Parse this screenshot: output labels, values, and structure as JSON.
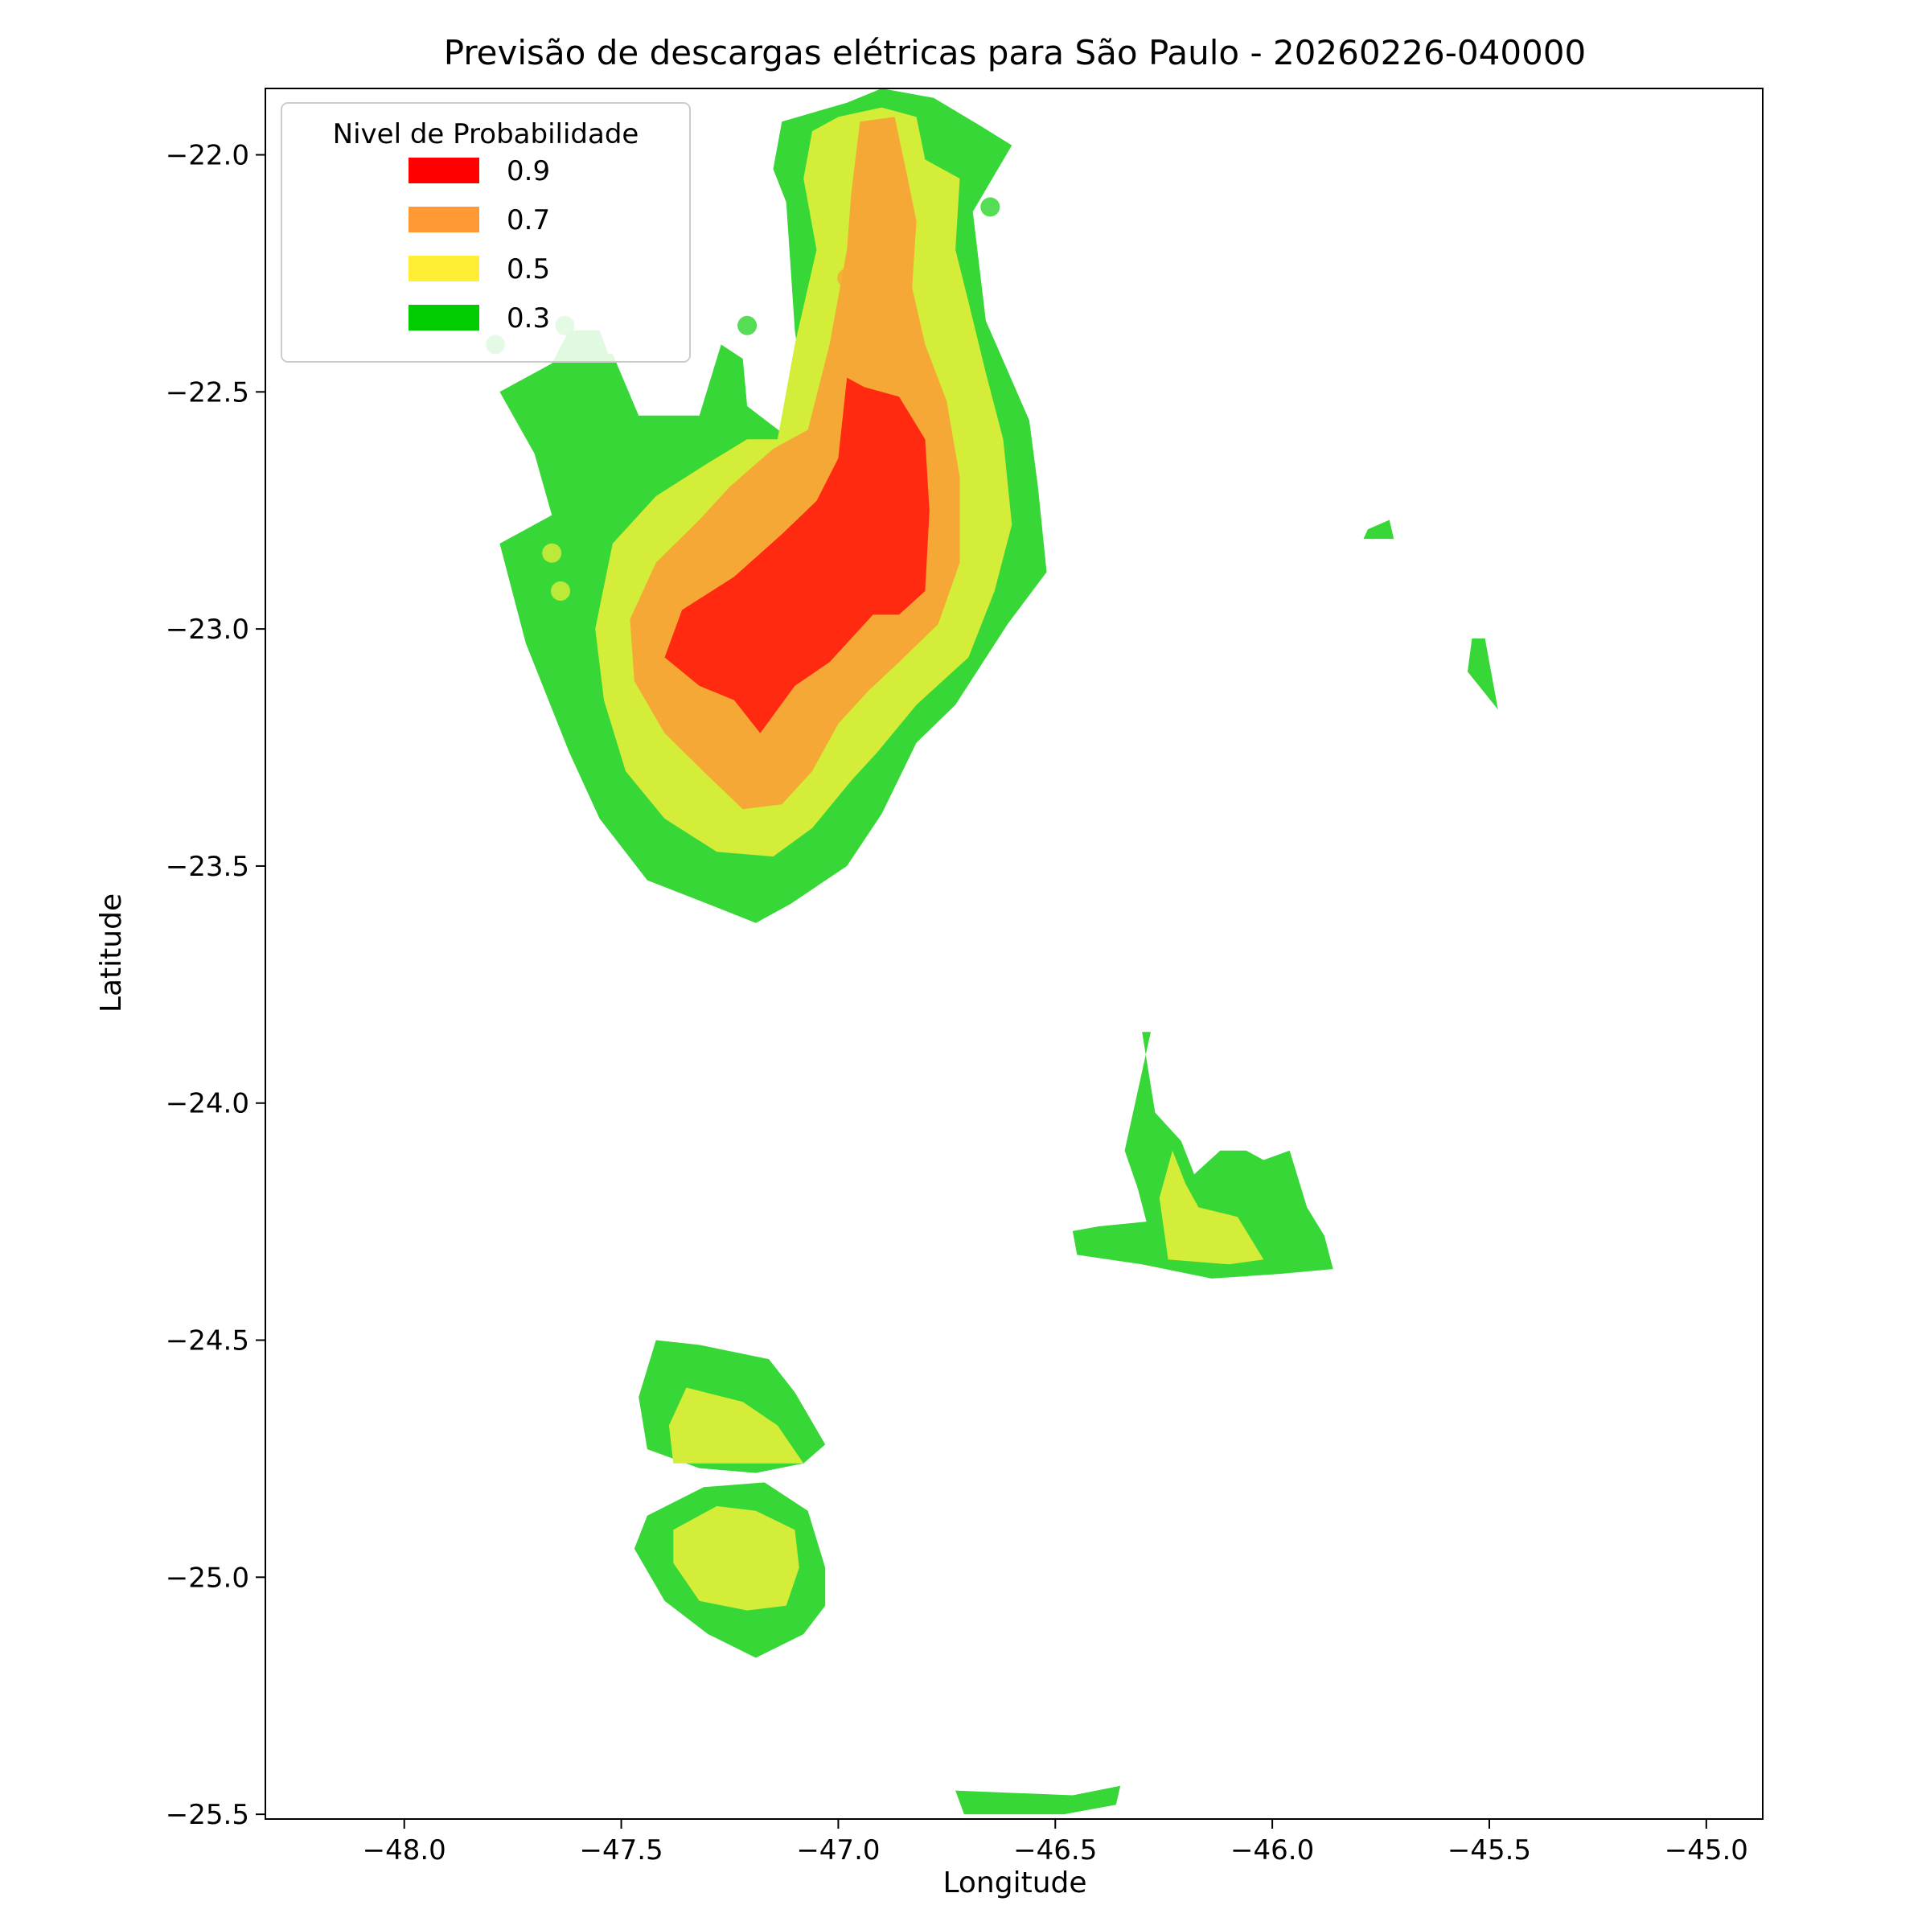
{
  "chart_data": {
    "type": "heatmap",
    "title": "Previsão de descargas elétricas para São Paulo - 20260226-040000",
    "xlabel": "Longitude",
    "ylabel": "Latitude",
    "xlim": [
      -48.32,
      -44.87
    ],
    "ylim": [
      -25.51,
      -21.86
    ],
    "xticks": [
      -48.0,
      -47.5,
      -47.0,
      -46.5,
      -46.0,
      -45.5,
      -45.0
    ],
    "xtick_labels": [
      "−48.0",
      "−47.5",
      "−47.0",
      "−46.5",
      "−46.0",
      "−45.5",
      "−45.0"
    ],
    "yticks": [
      -22.0,
      -22.5,
      -23.0,
      -23.5,
      -24.0,
      -24.5,
      -25.0,
      -25.5
    ],
    "ytick_labels": [
      "−22.0",
      "−22.5",
      "−23.0",
      "−23.5",
      "−24.0",
      "−24.5",
      "−25.0",
      "−25.5"
    ],
    "grid": false,
    "legend": {
      "title": "Nivel de Probabilidade",
      "placement": "upper-left",
      "entries": [
        {
          "label": "0.9",
          "color": "#ff0000"
        },
        {
          "label": "0.7",
          "color": "#ff9933"
        },
        {
          "label": "0.5",
          "color": "#ffee33"
        },
        {
          "label": "0.3",
          "color": "#00cc00"
        }
      ]
    },
    "fill_colors": {
      "0.3": "#37d737",
      "0.5": "#d4ed38",
      "0.7": "#f6a836",
      "0.9": "#ff2a10"
    },
    "regions": [
      {
        "name": "northern-cell",
        "level": "0.3",
        "polygon": [
          [
            -47.21,
            -22.53
          ],
          [
            -47.22,
            -22.43
          ],
          [
            -47.27,
            -22.4
          ],
          [
            -47.32,
            -22.55
          ],
          [
            -47.46,
            -22.55
          ],
          [
            -47.52,
            -22.42
          ],
          [
            -47.62,
            -22.42
          ],
          [
            -47.78,
            -22.5
          ],
          [
            -47.7,
            -22.63
          ],
          [
            -47.66,
            -22.76
          ],
          [
            -47.78,
            -22.82
          ],
          [
            -47.72,
            -23.03
          ],
          [
            -47.62,
            -23.26
          ],
          [
            -47.55,
            -23.4
          ],
          [
            -47.44,
            -23.53
          ],
          [
            -47.3,
            -23.58
          ],
          [
            -47.19,
            -23.62
          ],
          [
            -47.11,
            -23.58
          ],
          [
            -46.98,
            -23.5
          ],
          [
            -46.9,
            -23.39
          ],
          [
            -46.82,
            -23.24
          ],
          [
            -46.73,
            -23.16
          ],
          [
            -46.61,
            -22.99
          ],
          [
            -46.52,
            -22.88
          ],
          [
            -46.54,
            -22.7
          ],
          [
            -46.56,
            -22.56
          ],
          [
            -46.66,
            -22.35
          ],
          [
            -46.69,
            -22.12
          ],
          [
            -46.6,
            -21.98
          ],
          [
            -46.67,
            -21.94
          ],
          [
            -46.78,
            -21.88
          ],
          [
            -46.9,
            -21.86
          ],
          [
            -46.98,
            -21.89
          ],
          [
            -47.13,
            -21.93
          ],
          [
            -47.15,
            -22.03
          ],
          [
            -47.12,
            -22.1
          ],
          [
            -47.1,
            -22.37
          ],
          [
            -47.08,
            -22.5
          ],
          [
            -47.11,
            -22.6
          ]
        ]
      },
      {
        "name": "northern-cell",
        "level": "0.5",
        "polygon": [
          [
            -47.06,
            -21.95
          ],
          [
            -47.0,
            -21.92
          ],
          [
            -46.9,
            -21.9
          ],
          [
            -46.82,
            -21.92
          ],
          [
            -46.8,
            -22.01
          ],
          [
            -46.72,
            -22.05
          ],
          [
            -46.73,
            -22.2
          ],
          [
            -46.7,
            -22.31
          ],
          [
            -46.66,
            -22.46
          ],
          [
            -46.62,
            -22.6
          ],
          [
            -46.6,
            -22.78
          ],
          [
            -46.64,
            -22.92
          ],
          [
            -46.7,
            -23.06
          ],
          [
            -46.82,
            -23.16
          ],
          [
            -46.91,
            -23.26
          ],
          [
            -46.97,
            -23.32
          ],
          [
            -47.06,
            -23.42
          ],
          [
            -47.15,
            -23.48
          ],
          [
            -47.28,
            -23.47
          ],
          [
            -47.4,
            -23.4
          ],
          [
            -47.49,
            -23.3
          ],
          [
            -47.54,
            -23.15
          ],
          [
            -47.56,
            -23.0
          ],
          [
            -47.52,
            -22.82
          ],
          [
            -47.42,
            -22.72
          ],
          [
            -47.3,
            -22.65
          ],
          [
            -47.21,
            -22.6
          ],
          [
            -47.14,
            -22.6
          ],
          [
            -47.1,
            -22.4
          ],
          [
            -47.05,
            -22.2
          ],
          [
            -47.08,
            -22.05
          ]
        ]
      },
      {
        "name": "northern-cell",
        "level": "0.7",
        "polygon": [
          [
            -46.95,
            -21.93
          ],
          [
            -46.87,
            -21.92
          ],
          [
            -46.84,
            -22.05
          ],
          [
            -46.82,
            -22.14
          ],
          [
            -46.83,
            -22.28
          ],
          [
            -46.8,
            -22.4
          ],
          [
            -46.75,
            -22.52
          ],
          [
            -46.72,
            -22.68
          ],
          [
            -46.72,
            -22.86
          ],
          [
            -46.77,
            -22.99
          ],
          [
            -46.86,
            -23.07
          ],
          [
            -46.93,
            -23.13
          ],
          [
            -47.0,
            -23.2
          ],
          [
            -47.06,
            -23.3
          ],
          [
            -47.13,
            -23.37
          ],
          [
            -47.22,
            -23.38
          ],
          [
            -47.3,
            -23.31
          ],
          [
            -47.4,
            -23.22
          ],
          [
            -47.47,
            -23.11
          ],
          [
            -47.48,
            -22.98
          ],
          [
            -47.42,
            -22.86
          ],
          [
            -47.32,
            -22.77
          ],
          [
            -47.25,
            -22.7
          ],
          [
            -47.15,
            -22.62
          ],
          [
            -47.07,
            -22.58
          ],
          [
            -47.02,
            -22.4
          ],
          [
            -46.98,
            -22.2
          ],
          [
            -46.97,
            -22.08
          ]
        ]
      },
      {
        "name": "northern-cell",
        "level": "0.9",
        "polygon": [
          [
            -46.98,
            -22.47
          ],
          [
            -46.94,
            -22.49
          ],
          [
            -46.86,
            -22.51
          ],
          [
            -46.8,
            -22.6
          ],
          [
            -46.79,
            -22.75
          ],
          [
            -46.8,
            -22.92
          ],
          [
            -46.86,
            -22.97
          ],
          [
            -46.92,
            -22.97
          ],
          [
            -46.97,
            -23.02
          ],
          [
            -47.02,
            -23.07
          ],
          [
            -47.1,
            -23.12
          ],
          [
            -47.18,
            -23.22
          ],
          [
            -47.24,
            -23.15
          ],
          [
            -47.32,
            -23.12
          ],
          [
            -47.4,
            -23.06
          ],
          [
            -47.36,
            -22.96
          ],
          [
            -47.24,
            -22.89
          ],
          [
            -47.13,
            -22.8
          ],
          [
            -47.05,
            -22.73
          ],
          [
            -47.0,
            -22.64
          ]
        ]
      },
      {
        "name": "eastern-cell",
        "level": "0.3",
        "polygon": [
          [
            -46.28,
            -23.85
          ],
          [
            -46.3,
            -23.85
          ],
          [
            -46.27,
            -24.02
          ],
          [
            -46.21,
            -24.08
          ],
          [
            -46.18,
            -24.15
          ],
          [
            -46.12,
            -24.1
          ],
          [
            -46.06,
            -24.1
          ],
          [
            -46.02,
            -24.12
          ],
          [
            -45.96,
            -24.1
          ],
          [
            -45.92,
            -24.22
          ],
          [
            -45.88,
            -24.28
          ],
          [
            -45.86,
            -24.35
          ],
          [
            -45.98,
            -24.36
          ],
          [
            -46.14,
            -24.37
          ],
          [
            -46.3,
            -24.34
          ],
          [
            -46.45,
            -24.32
          ],
          [
            -46.46,
            -24.27
          ],
          [
            -46.4,
            -24.26
          ],
          [
            -46.29,
            -24.25
          ],
          [
            -46.31,
            -24.18
          ],
          [
            -46.34,
            -24.1
          ]
        ]
      },
      {
        "name": "eastern-cell",
        "level": "0.5",
        "polygon": [
          [
            -46.23,
            -24.1
          ],
          [
            -46.2,
            -24.17
          ],
          [
            -46.17,
            -24.22
          ],
          [
            -46.08,
            -24.24
          ],
          [
            -46.02,
            -24.33
          ],
          [
            -46.1,
            -24.34
          ],
          [
            -46.24,
            -24.33
          ],
          [
            -46.26,
            -24.2
          ]
        ]
      },
      {
        "name": "southern-cell-upper",
        "level": "0.3",
        "polygon": [
          [
            -47.42,
            -24.5
          ],
          [
            -47.32,
            -24.51
          ],
          [
            -47.16,
            -24.54
          ],
          [
            -47.1,
            -24.61
          ],
          [
            -47.03,
            -24.72
          ],
          [
            -47.08,
            -24.76
          ],
          [
            -47.19,
            -24.78
          ],
          [
            -47.32,
            -24.77
          ],
          [
            -47.44,
            -24.73
          ],
          [
            -47.46,
            -24.62
          ]
        ]
      },
      {
        "name": "southern-cell-upper",
        "level": "0.5",
        "polygon": [
          [
            -47.35,
            -24.6
          ],
          [
            -47.22,
            -24.63
          ],
          [
            -47.14,
            -24.68
          ],
          [
            -47.08,
            -24.76
          ],
          [
            -47.38,
            -24.76
          ],
          [
            -47.39,
            -24.68
          ]
        ]
      },
      {
        "name": "southern-cell-lower",
        "level": "0.3",
        "polygon": [
          [
            -47.31,
            -24.81
          ],
          [
            -47.17,
            -24.8
          ],
          [
            -47.07,
            -24.86
          ],
          [
            -47.03,
            -24.98
          ],
          [
            -47.03,
            -25.06
          ],
          [
            -47.08,
            -25.12
          ],
          [
            -47.19,
            -25.17
          ],
          [
            -47.3,
            -25.12
          ],
          [
            -47.4,
            -25.05
          ],
          [
            -47.47,
            -24.94
          ],
          [
            -47.44,
            -24.87
          ]
        ]
      },
      {
        "name": "southern-cell-lower",
        "level": "0.5",
        "polygon": [
          [
            -47.28,
            -24.85
          ],
          [
            -47.19,
            -24.86
          ],
          [
            -47.1,
            -24.9
          ],
          [
            -47.09,
            -24.98
          ],
          [
            -47.12,
            -25.06
          ],
          [
            -47.21,
            -25.07
          ],
          [
            -47.32,
            -25.05
          ],
          [
            -47.38,
            -24.97
          ],
          [
            -47.38,
            -24.9
          ]
        ]
      },
      {
        "name": "coastal-strip",
        "level": "0.3",
        "polygon": [
          [
            -46.73,
            -25.45
          ],
          [
            -46.46,
            -25.46
          ],
          [
            -46.35,
            -25.44
          ],
          [
            -46.36,
            -25.48
          ],
          [
            -46.48,
            -25.5
          ],
          [
            -46.71,
            -25.5
          ]
        ]
      },
      {
        "name": "east-fragment",
        "level": "0.3",
        "polygon": [
          [
            -45.78,
            -22.79
          ],
          [
            -45.73,
            -22.77
          ],
          [
            -45.72,
            -22.81
          ],
          [
            -45.79,
            -22.81
          ]
        ]
      },
      {
        "name": "east-fragment",
        "level": "0.3",
        "polygon": [
          [
            -45.54,
            -23.02
          ],
          [
            -45.51,
            -23.02
          ],
          [
            -45.48,
            -23.17
          ],
          [
            -45.55,
            -23.09
          ]
        ]
      },
      {
        "name": "northwest-patch",
        "level": "0.3",
        "polygon": [
          [
            -47.62,
            -22.37
          ],
          [
            -47.55,
            -22.37
          ],
          [
            -47.53,
            -22.42
          ],
          [
            -47.58,
            -22.47
          ],
          [
            -47.66,
            -22.44
          ]
        ]
      }
    ],
    "markers": [
      {
        "lon": -46.65,
        "lat": -22.11,
        "level": "0.3"
      },
      {
        "lon": -47.21,
        "lat": -22.36,
        "level": "0.3"
      },
      {
        "lon": -47.63,
        "lat": -22.36,
        "level": "0.3"
      },
      {
        "lon": -47.79,
        "lat": -22.4,
        "level": "0.3"
      },
      {
        "lon": -47.66,
        "lat": -22.84,
        "level": "0.5"
      },
      {
        "lon": -47.64,
        "lat": -22.92,
        "level": "0.5"
      },
      {
        "lon": -46.98,
        "lat": -22.26,
        "level": "0.7"
      }
    ]
  }
}
